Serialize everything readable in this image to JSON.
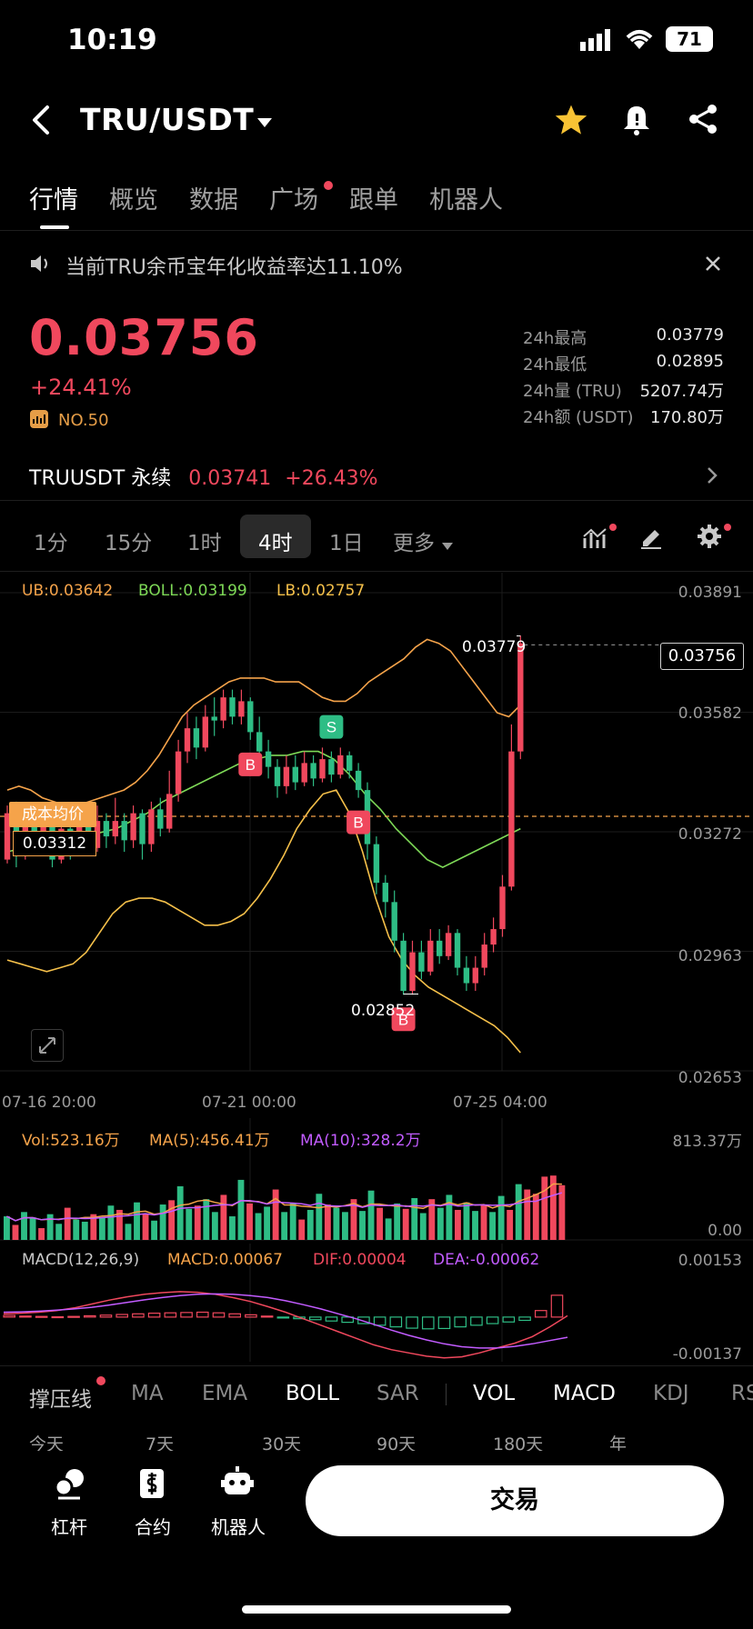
{
  "status": {
    "time": "10:19",
    "battery": "71"
  },
  "header": {
    "pair": "TRU/USDT"
  },
  "tabs": [
    "行情",
    "概览",
    "数据",
    "广场",
    "跟单",
    "机器人"
  ],
  "notice": "当前TRU余币宝年化收益率达11.10%",
  "ticker": {
    "price": "0.03756",
    "change": "+24.41%",
    "rank": "NO.50",
    "stats": [
      {
        "label": "24h最高",
        "value": "0.03779"
      },
      {
        "label": "24h最低",
        "value": "0.02895"
      },
      {
        "label": "24h量 (TRU)",
        "value": "5207.74万"
      },
      {
        "label": "24h额 (USDT)",
        "value": "170.80万"
      }
    ]
  },
  "perpetual": {
    "name": "TRUUSDT 永续",
    "price": "0.03741",
    "change": "+26.43%"
  },
  "timeframes": [
    "1分",
    "15分",
    "1时",
    "4时",
    "1日",
    "更多"
  ],
  "boll_legend": {
    "ub": "UB:0.03642",
    "boll": "BOLL:0.03199",
    "lb": "LB:0.02757"
  },
  "price_axis": [
    "0.03891",
    "0.03582",
    "0.03272",
    "0.02963",
    "0.02653"
  ],
  "current_price_tag": "0.03756",
  "high_marker": "0.03779",
  "low_marker": "0.02852",
  "cost_avg": {
    "label": "成本均价",
    "value": "0.03312"
  },
  "time_axis": [
    "07-16 20:00",
    "07-21 00:00",
    "07-25 04:00"
  ],
  "volume_legend": {
    "vol": "Vol:523.16万",
    "ma5": "MA(5):456.41万",
    "ma10": "MA(10):328.2万",
    "max": "813.37万",
    "min": "0.00"
  },
  "macd_legend": {
    "name": "MACD(12,26,9)",
    "macd": "MACD:0.00067",
    "dif": "DIF:0.00004",
    "dea": "DEA:-0.00062",
    "max": "0.00153",
    "min": "-0.00137"
  },
  "indicator_tabs": [
    "撑压线",
    "MA",
    "EMA",
    "BOLL",
    "SAR",
    "VOL",
    "MACD",
    "KDJ",
    "RS"
  ],
  "ranges": [
    "今天",
    "7天",
    "30天",
    "90天",
    "180天",
    "年"
  ],
  "bottom_nav": {
    "leverage": "杠杆",
    "contract": "合约",
    "robot": "机器人",
    "trade": "交易"
  },
  "colors": {
    "up": "#f0485d",
    "down": "#2ebd85",
    "ub": "#f5a34a",
    "boll": "#7ed957",
    "lb": "#f5c04a",
    "vol_ma5": "#f5a34a",
    "vol_ma10": "#c25cff"
  },
  "chart_data": {
    "type": "candlestick",
    "ylim": [
      0.02653,
      0.03891
    ],
    "candles": [
      [
        0.032,
        0.0332,
        0.0319,
        0.0334
      ],
      [
        0.0332,
        0.0321,
        0.0318,
        0.0335
      ],
      [
        0.0321,
        0.0331,
        0.032,
        0.0333
      ],
      [
        0.0331,
        0.0324,
        0.0322,
        0.0333
      ],
      [
        0.0324,
        0.033,
        0.0321,
        0.0332
      ],
      [
        0.033,
        0.032,
        0.0318,
        0.0331
      ],
      [
        0.032,
        0.0328,
        0.0319,
        0.033
      ],
      [
        0.0328,
        0.0322,
        0.032,
        0.033
      ],
      [
        0.0322,
        0.0329,
        0.0321,
        0.0333
      ],
      [
        0.0329,
        0.0323,
        0.0321,
        0.0332
      ],
      [
        0.0323,
        0.033,
        0.0322,
        0.0334
      ],
      [
        0.033,
        0.0326,
        0.0323,
        0.0332
      ],
      [
        0.0326,
        0.033,
        0.0324,
        0.0336
      ],
      [
        0.033,
        0.0325,
        0.0322,
        0.0332
      ],
      [
        0.0325,
        0.0332,
        0.0323,
        0.0334
      ],
      [
        0.0332,
        0.0324,
        0.032,
        0.0333
      ],
      [
        0.0324,
        0.0333,
        0.0322,
        0.0335
      ],
      [
        0.0333,
        0.0328,
        0.0326,
        0.0336
      ],
      [
        0.0328,
        0.0337,
        0.0327,
        0.0343
      ],
      [
        0.0337,
        0.0348,
        0.0335,
        0.0351
      ],
      [
        0.0348,
        0.0354,
        0.0345,
        0.0358
      ],
      [
        0.0354,
        0.0349,
        0.0346,
        0.0357
      ],
      [
        0.0349,
        0.0357,
        0.0348,
        0.036
      ],
      [
        0.0357,
        0.0356,
        0.0352,
        0.0362
      ],
      [
        0.0356,
        0.0362,
        0.0354,
        0.0364
      ],
      [
        0.0362,
        0.0357,
        0.0355,
        0.0364
      ],
      [
        0.0357,
        0.0361,
        0.0355,
        0.0364
      ],
      [
        0.0361,
        0.0353,
        0.0351,
        0.0362
      ],
      [
        0.0353,
        0.0348,
        0.0346,
        0.0357
      ],
      [
        0.0348,
        0.0344,
        0.0341,
        0.0351
      ],
      [
        0.0344,
        0.0339,
        0.0336,
        0.0346
      ],
      [
        0.0339,
        0.0344,
        0.0337,
        0.0347
      ],
      [
        0.0344,
        0.034,
        0.0338,
        0.0347
      ],
      [
        0.034,
        0.0345,
        0.0339,
        0.0348
      ],
      [
        0.0345,
        0.0341,
        0.0339,
        0.0347
      ],
      [
        0.0341,
        0.0346,
        0.034,
        0.0349
      ],
      [
        0.0346,
        0.0342,
        0.034,
        0.0348
      ],
      [
        0.0342,
        0.0347,
        0.0341,
        0.0349
      ],
      [
        0.0347,
        0.0343,
        0.0341,
        0.0348
      ],
      [
        0.0343,
        0.0338,
        0.0336,
        0.0345
      ],
      [
        0.0338,
        0.0324,
        0.032,
        0.034
      ],
      [
        0.0324,
        0.0314,
        0.0311,
        0.0326
      ],
      [
        0.0314,
        0.0309,
        0.0305,
        0.0316
      ],
      [
        0.0309,
        0.0299,
        0.0296,
        0.0312
      ],
      [
        0.0299,
        0.0286,
        0.0285,
        0.0301
      ],
      [
        0.0286,
        0.0296,
        0.0285,
        0.0299
      ],
      [
        0.0296,
        0.0291,
        0.0289,
        0.0299
      ],
      [
        0.0291,
        0.0299,
        0.029,
        0.0302
      ],
      [
        0.0299,
        0.0295,
        0.0293,
        0.0302
      ],
      [
        0.0295,
        0.0301,
        0.0294,
        0.0303
      ],
      [
        0.0301,
        0.0292,
        0.029,
        0.0302
      ],
      [
        0.0292,
        0.0288,
        0.0286,
        0.0295
      ],
      [
        0.0288,
        0.0292,
        0.0286,
        0.0295
      ],
      [
        0.0292,
        0.0298,
        0.029,
        0.0301
      ],
      [
        0.0298,
        0.0302,
        0.0296,
        0.0305
      ],
      [
        0.0302,
        0.0313,
        0.03,
        0.0316
      ],
      [
        0.0313,
        0.0348,
        0.0312,
        0.0355
      ],
      [
        0.0348,
        0.0376,
        0.0346,
        0.0378
      ]
    ],
    "ub": [
      0.0338,
      0.0339,
      0.0338,
      0.0336,
      0.0335,
      0.0334,
      0.0334,
      0.0335,
      0.0336,
      0.0337,
      0.0338,
      0.034,
      0.0343,
      0.0347,
      0.0352,
      0.0357,
      0.036,
      0.0362,
      0.0364,
      0.0366,
      0.0367,
      0.0367,
      0.0367,
      0.0366,
      0.0366,
      0.0366,
      0.0364,
      0.0362,
      0.0361,
      0.0361,
      0.0363,
      0.0366,
      0.0368,
      0.037,
      0.0372,
      0.0375,
      0.0377,
      0.0376,
      0.0374,
      0.037,
      0.0366,
      0.0362,
      0.0358,
      0.0357,
      0.036
    ],
    "boll": [
      0.0322,
      0.0323,
      0.0324,
      0.0324,
      0.0325,
      0.0326,
      0.0327,
      0.0328,
      0.033,
      0.0332,
      0.0335,
      0.0337,
      0.0339,
      0.0341,
      0.0343,
      0.0345,
      0.0346,
      0.0347,
      0.0347,
      0.0348,
      0.0348,
      0.0346,
      0.0342,
      0.0337,
      0.0333,
      0.0328,
      0.0324,
      0.032,
      0.0318,
      0.032,
      0.0322,
      0.0324,
      0.0326,
      0.0328
    ],
    "lb": [
      0.0294,
      0.0293,
      0.0292,
      0.0291,
      0.0292,
      0.0293,
      0.0296,
      0.0301,
      0.0306,
      0.0309,
      0.031,
      0.031,
      0.0309,
      0.0307,
      0.0305,
      0.0303,
      0.0303,
      0.0304,
      0.0306,
      0.031,
      0.0315,
      0.0321,
      0.0328,
      0.0333,
      0.0337,
      0.0338,
      0.0332,
      0.0322,
      0.031,
      0.03,
      0.0294,
      0.029,
      0.0287,
      0.0285,
      0.0283,
      0.0281,
      0.0279,
      0.0277,
      0.0274,
      0.027
    ],
    "markers": [
      {
        "type": "B",
        "index": 27
      },
      {
        "type": "S",
        "index": 36
      },
      {
        "type": "B",
        "index": 39
      },
      {
        "type": "B",
        "index": 44
      }
    ],
    "volume": [
      220,
      140,
      260,
      210,
      110,
      240,
      150,
      300,
      190,
      170,
      240,
      210,
      320,
      280,
      150,
      350,
      240,
      180,
      330,
      370,
      500,
      290,
      320,
      380,
      260,
      420,
      220,
      560,
      340,
      250,
      310,
      470,
      260,
      340,
      190,
      280,
      430,
      330,
      300,
      260,
      380,
      270,
      460,
      300,
      200,
      340,
      290,
      390,
      250,
      380,
      300,
      420,
      280,
      350,
      270,
      330,
      260,
      410,
      280,
      520,
      470,
      430,
      590,
      600,
      510
    ],
    "volume_up_pattern": "alternating",
    "macd_hist": [
      5e-05,
      3e-05,
      2e-05,
      1e-05,
      2e-05,
      4e-05,
      6e-05,
      8e-05,
      0.0001,
      0.00012,
      0.00013,
      0.00014,
      0.00015,
      0.00013,
      0.0001,
      7e-05,
      3e-05,
      -2e-05,
      -5e-05,
      -8e-05,
      -0.00012,
      -0.00016,
      -0.0002,
      -0.00025,
      -0.0003,
      -0.00034,
      -0.00036,
      -0.00035,
      -0.0003,
      -0.00025,
      -0.0002,
      -0.00015,
      -0.0001,
      0.0002,
      0.00067
    ],
    "dif": [
      0.0001,
      0.00012,
      0.00015,
      0.0002,
      0.00028,
      0.0004,
      0.00052,
      0.00062,
      0.0007,
      0.00075,
      0.00078,
      0.00076,
      0.0007,
      0.0006,
      0.00048,
      0.00032,
      0.00015,
      -5e-05,
      -0.00025,
      -0.00045,
      -0.00065,
      -0.00085,
      -0.001,
      -0.0011,
      -0.0012,
      -0.00125,
      -0.00122,
      -0.0011,
      -0.00095,
      -0.0008,
      -0.0006,
      -0.0003,
      4e-05
    ],
    "dea": [
      0.00015,
      0.00016,
      0.00018,
      0.00021,
      0.00025,
      0.0003,
      0.00037,
      0.00045,
      0.00053,
      0.0006,
      0.00066,
      0.0007,
      0.00071,
      0.0007,
      0.00066,
      0.0006,
      0.0005,
      0.00038,
      0.00025,
      0.0001,
      -5e-05,
      -0.00022,
      -0.0004,
      -0.00056,
      -0.0007,
      -0.00082,
      -0.00091,
      -0.00095,
      -0.00095,
      -0.0009,
      -0.00082,
      -0.00072,
      -0.00062
    ]
  }
}
